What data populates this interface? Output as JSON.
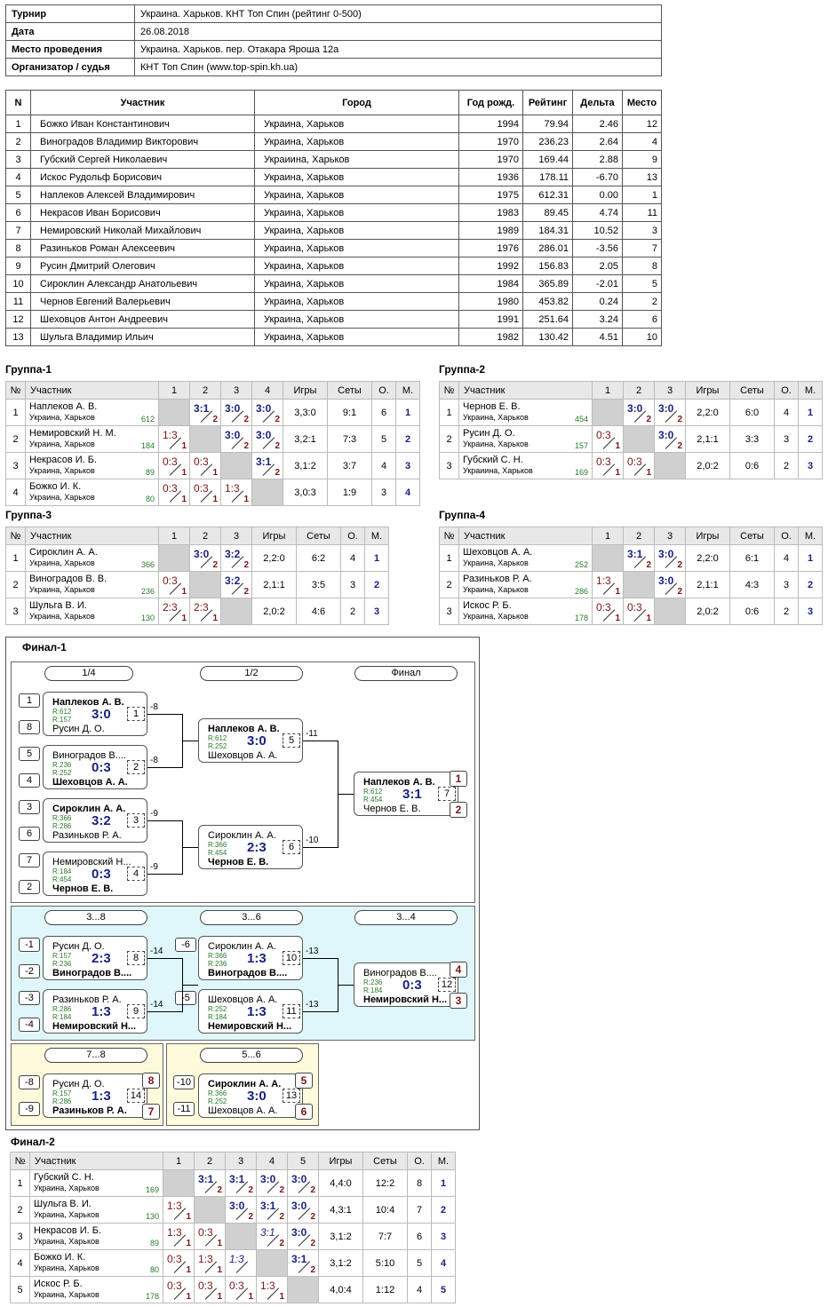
{
  "info": [
    {
      "k": "Турнир",
      "v": "Украина. Харьков. КНТ Топ Спин (рейтинг 0-500)"
    },
    {
      "k": "Дата",
      "v": "26.08.2018"
    },
    {
      "k": "Место проведения",
      "v": "Украина. Харьков. пер. Отакара Яроша 12а"
    },
    {
      "k": "Организатор / судья",
      "v": "КНТ Топ Спин (www.top-spin.kh.ua)"
    }
  ],
  "parts_head": [
    "N",
    "Участник",
    "Город",
    "Год рожд.",
    "Рейтинг",
    "Дельта",
    "Место"
  ],
  "parts": [
    [
      "1",
      "Божко Иван Константинович",
      "Украина, Харьков",
      "1994",
      "79.94",
      "2.46",
      "12"
    ],
    [
      "2",
      "Виноградов Владимир Викторович",
      "Украина, Харьков",
      "1970",
      "236.23",
      "2.64",
      "4"
    ],
    [
      "3",
      "Губский Сергей Николаевич",
      "Украиина, Харьков",
      "1970",
      "169.44",
      "2.88",
      "9"
    ],
    [
      "4",
      "Искос Рудольф Борисович",
      "Украина, Харьков",
      "1936",
      "178.11",
      "-6.70",
      "13"
    ],
    [
      "5",
      "Наплеков Алексей Владимирович",
      "Украина, Харьков",
      "1975",
      "612.31",
      "0.00",
      "1"
    ],
    [
      "6",
      "Некрасов Иван Борисович",
      "Украина, Харьков",
      "1983",
      "89.45",
      "4.74",
      "11"
    ],
    [
      "7",
      "Немировский Николай Михайлович",
      "Украина, Харьков",
      "1989",
      "184.31",
      "10.52",
      "3"
    ],
    [
      "8",
      "Разиньков Роман Алексеевич",
      "Украина, Харьков",
      "1976",
      "286.01",
      "-3.56",
      "7"
    ],
    [
      "9",
      "Русин Дмитрий Олегович",
      "Украина, Харьков",
      "1992",
      "156.83",
      "2.05",
      "8"
    ],
    [
      "10",
      "Сироклин Александр Анатольевич",
      "Украина, Харьков",
      "1984",
      "365.89",
      "-2.01",
      "5"
    ],
    [
      "11",
      "Чернов Евгений Валерьевич",
      "Украина, Харьков",
      "1980",
      "453.82",
      "0.24",
      "2"
    ],
    [
      "12",
      "Шеховцов Антон Андреевич",
      "Украина, Харьков",
      "1991",
      "251.64",
      "3.24",
      "6"
    ],
    [
      "13",
      "Шульга Владимир Ильич",
      "Украина, Харьков",
      "1982",
      "130.42",
      "4.51",
      "10"
    ]
  ],
  "groups": [
    {
      "title": "Группа-1",
      "rows": [
        {
          "n": "1",
          "name": "Наплеков А. В.",
          "city": "Украина, Харьков",
          "r": "612",
          "c": [
            "X",
            "W3:1/2",
            "W3:0/2",
            "W3:0/2"
          ],
          "g": "3,3:0",
          "s": "9:1",
          "o": "6",
          "m": "1"
        },
        {
          "n": "2",
          "name": "Немировский Н. М.",
          "city": "Украина, Харьков",
          "r": "184",
          "c": [
            "L1:3/1",
            "X",
            "W3:0/2",
            "W3:0/2"
          ],
          "g": "3,2:1",
          "s": "7:3",
          "o": "5",
          "m": "2"
        },
        {
          "n": "3",
          "name": "Некрасов И. Б.",
          "city": "Украина, Харьков",
          "r": "89",
          "c": [
            "L0:3/1",
            "L0:3/1",
            "X",
            "W3:1/2"
          ],
          "g": "3,1:2",
          "s": "3:7",
          "o": "4",
          "m": "3"
        },
        {
          "n": "4",
          "name": "Божко И. К.",
          "city": "Украина, Харьков",
          "r": "80",
          "c": [
            "L0:3/1",
            "L0:3/1",
            "L1:3/1",
            "X"
          ],
          "g": "3,0:3",
          "s": "1:9",
          "o": "3",
          "m": "4"
        }
      ]
    },
    {
      "title": "Группа-2",
      "rows": [
        {
          "n": "1",
          "name": "Чернов Е. В.",
          "city": "Украина, Харьков",
          "r": "454",
          "c": [
            "X",
            "W3:0/2",
            "W3:0/2"
          ],
          "g": "2,2:0",
          "s": "6:0",
          "o": "4",
          "m": "1"
        },
        {
          "n": "2",
          "name": "Русин Д. О.",
          "city": "Украина, Харьков",
          "r": "157",
          "c": [
            "L0:3/1",
            "X",
            "W3:0/2"
          ],
          "g": "2,1:1",
          "s": "3:3",
          "o": "3",
          "m": "2"
        },
        {
          "n": "3",
          "name": "Губский С. Н.",
          "city": "Украиина, Харьков",
          "r": "169",
          "c": [
            "L0:3/1",
            "L0:3/1",
            "X"
          ],
          "g": "2,0:2",
          "s": "0:6",
          "o": "2",
          "m": "3"
        }
      ]
    },
    {
      "title": "Группа-3",
      "rows": [
        {
          "n": "1",
          "name": "Сироклин А. А.",
          "city": "Украина, Харьков",
          "r": "366",
          "c": [
            "X",
            "W3:0/2",
            "W3:2/2"
          ],
          "g": "2,2:0",
          "s": "6:2",
          "o": "4",
          "m": "1"
        },
        {
          "n": "2",
          "name": "Виноградов В. В.",
          "city": "Украина, Харьков",
          "r": "236",
          "c": [
            "L0:3/1",
            "X",
            "W3:2/2"
          ],
          "g": "2,1:1",
          "s": "3:5",
          "o": "3",
          "m": "2"
        },
        {
          "n": "3",
          "name": "Шульга В. И.",
          "city": "Украина, Харьков",
          "r": "130",
          "c": [
            "L2:3/1",
            "L2:3/1",
            "X"
          ],
          "g": "2,0:2",
          "s": "4:6",
          "o": "2",
          "m": "3"
        }
      ]
    },
    {
      "title": "Группа-4",
      "rows": [
        {
          "n": "1",
          "name": "Шеховцов А. А.",
          "city": "Украина, Харьков",
          "r": "252",
          "c": [
            "X",
            "W3:1/2",
            "W3:0/2"
          ],
          "g": "2,2:0",
          "s": "6:1",
          "o": "4",
          "m": "1"
        },
        {
          "n": "2",
          "name": "Разиньков Р. А.",
          "city": "Украина, Харьков",
          "r": "286",
          "c": [
            "L1:3/1",
            "X",
            "W3:0/2"
          ],
          "g": "2,1:1",
          "s": "4:3",
          "o": "3",
          "m": "2"
        },
        {
          "n": "3",
          "name": "Искос Р. Б.",
          "city": "Украина, Харьков",
          "r": "178",
          "c": [
            "L0:3/1",
            "L0:3/1",
            "X"
          ],
          "g": "2,0:2",
          "s": "0:6",
          "o": "2",
          "m": "3"
        }
      ]
    }
  ],
  "group_head": {
    "n": "№",
    "p": "Участник",
    "g": "Игры",
    "s": "Сеты",
    "o": "О.",
    "m": "М."
  },
  "final1": {
    "title": "Финал-1",
    "stages": [
      "1/4",
      "1/2",
      "Финал",
      "3...8",
      "3...6",
      "3...4",
      "7...8",
      "5...6"
    ],
    "seeds": [
      "1",
      "8",
      "5",
      "4",
      "3",
      "6",
      "7",
      "2",
      "-1",
      "-2",
      "-3",
      "-4",
      "-6",
      "-5",
      "-8",
      "-9",
      "-10",
      "-11"
    ],
    "matches": [
      {
        "p1": "Наплеков А. В.",
        "r1": "R:612",
        "r2": "R:157",
        "p2": "Русин Д. О.",
        "s": "3:0",
        "n": "1",
        "w": 1,
        "next": "-8"
      },
      {
        "p1": "Виноградов В....",
        "r1": "R:236",
        "r2": "R:252",
        "p2": "Шеховцов А. А.",
        "s": "0:3",
        "n": "2",
        "w": 2,
        "next": "-8"
      },
      {
        "p1": "Сироклин А. А.",
        "r1": "R:366",
        "r2": "R:286",
        "p2": "Разиньков Р. А.",
        "s": "3:2",
        "n": "3",
        "w": 1,
        "next": "-9"
      },
      {
        "p1": "Немировский Н...",
        "r1": "R:184",
        "r2": "R:454",
        "p2": "Чернов Е. В.",
        "s": "0:3",
        "n": "4",
        "w": 2,
        "next": "-9"
      },
      {
        "p1": "Наплеков А. В.",
        "r1": "R:612",
        "r2": "R:252",
        "p2": "Шеховцов А. А.",
        "s": "3:0",
        "n": "5",
        "w": 1,
        "next": "-11"
      },
      {
        "p1": "Сироклин А. А.",
        "r1": "R:366",
        "r2": "R:454",
        "p2": "Чернов Е. В.",
        "s": "2:3",
        "n": "6",
        "w": 2,
        "next": "-10"
      },
      {
        "p1": "Наплеков А. В.",
        "r1": "R:612",
        "r2": "R:454",
        "p2": "Чернов Е. В.",
        "s": "3:1",
        "n": "7",
        "w": 1,
        "next": ""
      },
      {
        "p1": "Русин Д. О.",
        "r1": "R:157",
        "r2": "R:236",
        "p2": "Виноградов В....",
        "s": "2:3",
        "n": "8",
        "w": 2,
        "next": "-14"
      },
      {
        "p1": "Разиньков Р. А.",
        "r1": "R:286",
        "r2": "R:184",
        "p2": "Немировский Н...",
        "s": "1:3",
        "n": "9",
        "w": 2,
        "next": "-14"
      },
      {
        "p1": "Сироклин А. А.",
        "r1": "R:366",
        "r2": "R:236",
        "p2": "Виноградов В....",
        "s": "1:3",
        "n": "10",
        "w": 2,
        "next": "-13"
      },
      {
        "p1": "Шеховцов А. А.",
        "r1": "R:252",
        "r2": "R:184",
        "p2": "Немировский Н...",
        "s": "1:3",
        "n": "11",
        "w": 2,
        "next": "-13"
      },
      {
        "p1": "Виноградов В....",
        "r1": "R:236",
        "r2": "R:184",
        "p2": "Немировский Н...",
        "s": "0:3",
        "n": "12",
        "w": 2,
        "next": ""
      },
      {
        "p1": "Русин Д. О.",
        "r1": "R:157",
        "r2": "R:286",
        "p2": "Разиньков Р. А.",
        "s": "1:3",
        "n": "14",
        "w": 2,
        "next": ""
      },
      {
        "p1": "Сироклин А. А.",
        "r1": "R:366",
        "r2": "R:252",
        "p2": "Шеховцов А. А.",
        "s": "3:0",
        "n": "13",
        "w": 1,
        "next": ""
      }
    ],
    "places": [
      "1",
      "2",
      "4",
      "3",
      "8",
      "7",
      "5",
      "6"
    ]
  },
  "final2": {
    "title": "Финал-2",
    "rows": [
      {
        "n": "1",
        "name": "Губский С. Н.",
        "city": "Украина, Харьков",
        "r": "169",
        "c": [
          "X",
          "W3:1/2",
          "W3:1/2",
          "W3:0/2",
          "W3:0/2"
        ],
        "g": "4,4:0",
        "s": "12:2",
        "o": "8",
        "m": "1"
      },
      {
        "n": "2",
        "name": "Шульга В. И.",
        "city": "Украина, Харьков",
        "r": "130",
        "c": [
          "L1:3/1",
          "X",
          "W3:0/2",
          "W3:1/2",
          "W3:0/2"
        ],
        "g": "4,3:1",
        "s": "10:4",
        "o": "7",
        "m": "2"
      },
      {
        "n": "3",
        "name": "Некрасов И. Б.",
        "city": "Украина, Харьков",
        "r": "89",
        "c": [
          "L1:3/1",
          "L0:3/1",
          "X",
          "I3:1/2",
          "W3:0/2"
        ],
        "g": "3,1:2",
        "s": "7:7",
        "o": "6",
        "m": "3"
      },
      {
        "n": "4",
        "name": "Божко И. К.",
        "city": "Украина, Харьков",
        "r": "80",
        "c": [
          "L0:3/1",
          "L1:3/1",
          "J1:3/",
          "X",
          "W3:1/2"
        ],
        "g": "3,1:2",
        "s": "5:10",
        "o": "5",
        "m": "4"
      },
      {
        "n": "5",
        "name": "Искос Р. Б.",
        "city": "Украина, Харьков",
        "r": "178",
        "c": [
          "L0:3/1",
          "L0:3/1",
          "L0:3/1",
          "L1:3/1",
          "X"
        ],
        "g": "4,0:4",
        "s": "1:12",
        "o": "4",
        "m": "5"
      }
    ]
  }
}
